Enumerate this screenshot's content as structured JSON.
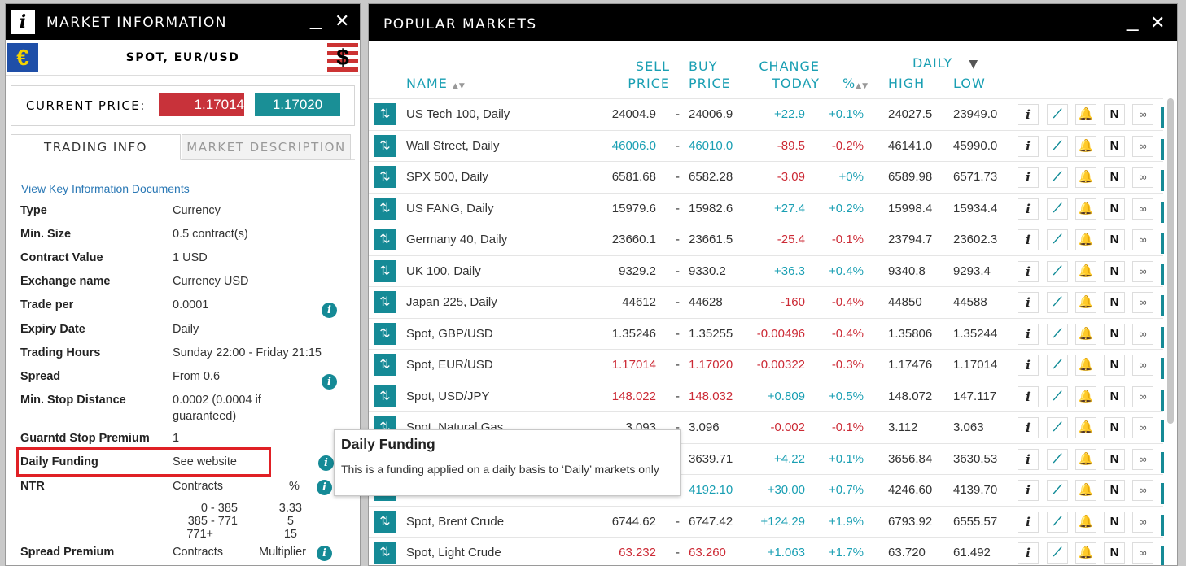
{
  "left_panel": {
    "title": "MARKET INFORMATION",
    "info_glyph": "i",
    "minimize": "_",
    "close": "✕",
    "symbol": "SPOT, EUR/USD",
    "flag_left": "€",
    "flag_right": "$",
    "current_price_label": "CURRENT PRICE:",
    "sell_price": "1.17014",
    "buy_price": "1.17020",
    "tabs": [
      {
        "label": "TRADING INFO"
      },
      {
        "label": "MARKET DESCRIPTION"
      }
    ],
    "kid_link": "View Key Information Documents",
    "rows": [
      {
        "label": "Type",
        "value": "Currency"
      },
      {
        "label": "Min. Size",
        "value": "0.5 contract(s)"
      },
      {
        "label": "Contract Value",
        "value": "1 USD"
      },
      {
        "label": "Exchange name",
        "value": "Currency USD"
      },
      {
        "label": "Trade per",
        "value": "0.0001"
      },
      {
        "label": "Expiry Date",
        "value": "Daily"
      },
      {
        "label": "Trading Hours",
        "value": "Sunday 22:00 - Friday 21:15"
      },
      {
        "label": "Spread",
        "value": "From 0.6"
      },
      {
        "label": "Min. Stop Distance",
        "value": "0.0002 (0.0004 if",
        "value2": "guaranteed)"
      },
      {
        "label": "Guarntd Stop Premium",
        "value": "1"
      },
      {
        "label": "Daily Funding",
        "value": "See website"
      },
      {
        "label": "NTR",
        "value": "Contracts",
        "value_right": "%"
      }
    ],
    "ntr_table": [
      {
        "range": "0 - 385",
        "pct": "3.33"
      },
      {
        "range": "385 - 771",
        "pct": "5"
      },
      {
        "range": "771+",
        "pct": "15"
      }
    ],
    "spread_premium": {
      "label": "Spread Premium",
      "value": "Contracts",
      "value_right": "Multiplier"
    }
  },
  "right_panel": {
    "title": "POPULAR MARKETS",
    "minimize": "_",
    "close": "✕",
    "headers": {
      "name": "NAME",
      "sell1": "SELL",
      "sell2": "PRICE",
      "buy1": "BUY",
      "buy2": "PRICE",
      "chg1": "CHANGE",
      "chg2": "TODAY",
      "pct": "%",
      "daily": "DAILY",
      "high": "HIGH",
      "low": "LOW"
    },
    "markets": [
      {
        "name": "US Tech 100, Daily",
        "sell": "24004.9",
        "buy": "24006.9",
        "change": "+22.9",
        "pct": "+0.1%",
        "high": "24027.5",
        "low": "23949.0",
        "price_color": "blk",
        "change_color": "blu"
      },
      {
        "name": "Wall Street, Daily",
        "sell": "46006.0",
        "buy": "46010.0",
        "change": "-89.5",
        "pct": "-0.2%",
        "high": "46141.0",
        "low": "45990.0",
        "price_color": "blu",
        "change_color": "red"
      },
      {
        "name": "SPX 500, Daily",
        "sell": "6581.68",
        "buy": "6582.28",
        "change": "-3.09",
        "pct": "+0%",
        "high": "6589.98",
        "low": "6571.73",
        "price_color": "blk",
        "change_color": "red",
        "pct_color": "blu"
      },
      {
        "name": "US FANG, Daily",
        "sell": "15979.6",
        "buy": "15982.6",
        "change": "+27.4",
        "pct": "+0.2%",
        "high": "15998.4",
        "low": "15934.4",
        "price_color": "blk",
        "change_color": "blu"
      },
      {
        "name": "Germany 40, Daily",
        "sell": "23660.1",
        "buy": "23661.5",
        "change": "-25.4",
        "pct": "-0.1%",
        "high": "23794.7",
        "low": "23602.3",
        "price_color": "blk",
        "change_color": "red"
      },
      {
        "name": "UK 100, Daily",
        "sell": "9329.2",
        "buy": "9330.2",
        "change": "+36.3",
        "pct": "+0.4%",
        "high": "9340.8",
        "low": "9293.4",
        "price_color": "blk",
        "change_color": "blu"
      },
      {
        "name": "Japan 225, Daily",
        "sell": "44612",
        "buy": "44628",
        "change": "-160",
        "pct": "-0.4%",
        "high": "44850",
        "low": "44588",
        "price_color": "blk",
        "change_color": "red"
      },
      {
        "name": "Spot, GBP/USD",
        "sell": "1.35246",
        "buy": "1.35255",
        "change": "-0.00496",
        "pct": "-0.4%",
        "high": "1.35806",
        "low": "1.35244",
        "price_color": "blk",
        "change_color": "red"
      },
      {
        "name": "Spot, EUR/USD",
        "sell": "1.17014",
        "buy": "1.17020",
        "change": "-0.00322",
        "pct": "-0.3%",
        "high": "1.17476",
        "low": "1.17014",
        "price_color": "red",
        "change_color": "red"
      },
      {
        "name": "Spot, USD/JPY",
        "sell": "148.022",
        "buy": "148.032",
        "change": "+0.809",
        "pct": "+0.5%",
        "high": "148.072",
        "low": "147.117",
        "price_color": "red",
        "change_color": "blu"
      },
      {
        "name": "Spot, Natural Gas",
        "sell": "3.093",
        "buy": "3.096",
        "change": "-0.002",
        "pct": "-0.1%",
        "high": "3.112",
        "low": "3.063",
        "price_color": "blk",
        "change_color": "red"
      },
      {
        "name": "",
        "sell": "",
        "buy": "3639.71",
        "change": "+4.22",
        "pct": "+0.1%",
        "high": "3656.84",
        "low": "3630.53",
        "price_color": "blk",
        "change_color": "blu"
      },
      {
        "name": "",
        "sell": "",
        "buy": "4192.10",
        "change": "+30.00",
        "pct": "+0.7%",
        "high": "4246.60",
        "low": "4139.70",
        "price_color": "blu",
        "change_color": "blu"
      },
      {
        "name": "Spot, Brent Crude",
        "sell": "6744.62",
        "buy": "6747.42",
        "change": "+124.29",
        "pct": "+1.9%",
        "high": "6793.92",
        "low": "6555.57",
        "price_color": "blk",
        "change_color": "blu"
      },
      {
        "name": "Spot, Light Crude",
        "sell": "63.232",
        "buy": "63.260",
        "change": "+1.063",
        "pct": "+1.7%",
        "high": "63.720",
        "low": "61.492",
        "price_color": "red",
        "change_color": "blu"
      }
    ],
    "row_icons": {
      "info": "i",
      "chart": "⟋",
      "alert": "🔔",
      "news": "N",
      "watch": "∞"
    }
  },
  "tooltip": {
    "title": "Daily Funding",
    "body": "This is a funding applied on a daily basis to ‘Daily’ markets only"
  },
  "colors": {
    "accent": "#158a96",
    "sell": "#c8323a",
    "blue_text": "#1a9fb3",
    "highlight": "#e02025"
  }
}
